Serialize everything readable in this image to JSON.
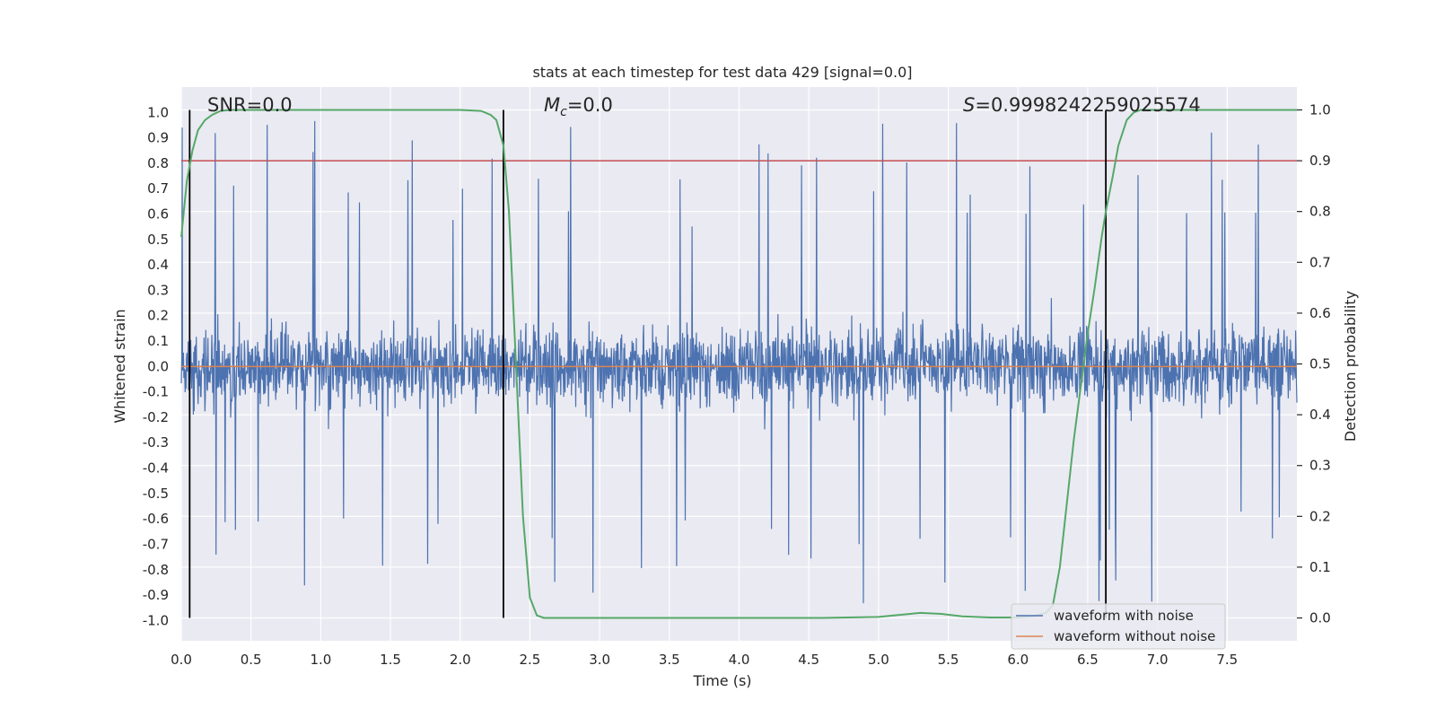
{
  "chart_data": {
    "type": "line",
    "title": "stats at each timestep for test data 429 [signal=0.0]",
    "xlabel": "Time (s)",
    "ylabel_left": "Whitened strain",
    "ylabel_right": "Detection probability",
    "xlim": [
      0.0,
      8.0
    ],
    "ylim_left": [
      -1.08,
      1.1
    ],
    "ylim_right": [
      -0.045,
      1.045
    ],
    "x_ticks": [
      "0.0",
      "0.5",
      "1.0",
      "1.5",
      "2.0",
      "2.5",
      "3.0",
      "3.5",
      "4.0",
      "4.5",
      "5.0",
      "5.5",
      "6.0",
      "6.5",
      "7.0",
      "7.5"
    ],
    "y_left_ticks": [
      "1.0",
      "0.9",
      "0.8",
      "0.7",
      "0.6",
      "0.5",
      "0.4",
      "0.3",
      "0.2",
      "0.1",
      "0.0",
      "-0.1",
      "-0.2",
      "-0.3",
      "-0.4",
      "-0.5",
      "-0.6",
      "-0.7",
      "-0.8",
      "-0.9",
      "-1.0"
    ],
    "y_right_ticks": [
      "1.0",
      "0.9",
      "0.8",
      "0.7",
      "0.6",
      "0.5",
      "0.4",
      "0.3",
      "0.2",
      "0.1",
      "0.0"
    ],
    "annotations": {
      "snr_label": "SNR=0.0",
      "mc_prefix": "M",
      "mc_sub": "c",
      "mc_rest": "=0.0",
      "s_prefix": "S",
      "s_rest": "=0.9998242259025574"
    },
    "threshold": {
      "y_right": 0.9,
      "color": "#c44e52"
    },
    "vertical_markers": [
      0.06,
      2.31,
      6.63
    ],
    "series": [
      {
        "name": "waveform with noise",
        "axis": "left",
        "color": "#4c72b0",
        "description": "dense noise trace spanning approx -0.97 to 1.0",
        "envelope_typical": 0.42,
        "envelope_max": 1.0,
        "envelope_min": -0.97
      },
      {
        "name": "waveform without noise",
        "axis": "left",
        "color": "#dd8452",
        "x": [
          0.0,
          8.0
        ],
        "y": [
          0.0,
          0.0
        ]
      },
      {
        "name": "detection probability",
        "axis": "right",
        "color": "#55a868",
        "x": [
          0.0,
          0.04,
          0.08,
          0.12,
          0.17,
          0.22,
          0.28,
          0.35,
          0.45,
          1.0,
          1.5,
          2.0,
          2.15,
          2.22,
          2.26,
          2.31,
          2.35,
          2.4,
          2.45,
          2.5,
          2.55,
          2.6,
          3.0,
          4.0,
          4.6,
          5.0,
          5.15,
          5.3,
          5.45,
          5.6,
          5.8,
          6.0,
          6.1,
          6.2,
          6.25,
          6.3,
          6.4,
          6.5,
          6.55,
          6.6,
          6.63,
          6.68,
          6.72,
          6.78,
          6.83,
          6.88,
          7.0,
          7.5,
          8.0
        ],
        "y": [
          0.75,
          0.86,
          0.92,
          0.96,
          0.98,
          0.99,
          0.998,
          1.0,
          1.0,
          1.0,
          1.0,
          1.0,
          0.998,
          0.99,
          0.98,
          0.93,
          0.8,
          0.5,
          0.2,
          0.04,
          0.005,
          0.0,
          0.0,
          0.0,
          0.0,
          0.002,
          0.006,
          0.01,
          0.008,
          0.003,
          0.001,
          0.001,
          0.003,
          0.01,
          0.025,
          0.1,
          0.35,
          0.56,
          0.65,
          0.75,
          0.8,
          0.87,
          0.93,
          0.98,
          0.995,
          1.0,
          1.0,
          1.0,
          1.0
        ]
      }
    ],
    "legend": {
      "location": "lower-right",
      "entries": [
        "waveform with noise",
        "waveform without noise"
      ]
    },
    "colors": {
      "background": "#eaeaf2",
      "grid": "#ffffff",
      "marker": "#000000"
    }
  }
}
